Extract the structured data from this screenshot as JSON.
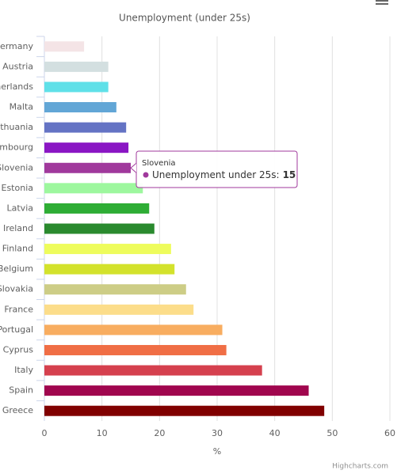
{
  "chart_data": {
    "type": "bar",
    "subtitle": "Unemployment (under 25s)",
    "categories": [
      "ermany",
      "Austria",
      "herlands",
      "Malta",
      "thuania",
      "mbourg",
      "Slovenia",
      "Estonia",
      "Latvia",
      "Ireland",
      "Finland",
      "Belgium",
      "Slovakia",
      "France",
      "Portugal",
      "Cyprus",
      "Italy",
      "Spain",
      "Greece"
    ],
    "series": [
      {
        "name": "Unemployment under 25s",
        "values": [
          6.9,
          11.1,
          11.1,
          12.5,
          14.2,
          14.6,
          15,
          17.1,
          18.2,
          19.1,
          22,
          22.6,
          24.6,
          25.9,
          30.9,
          31.6,
          37.8,
          45.9,
          48.6
        ],
        "colors": [
          "#f4e4e6",
          "#d3dfe0",
          "#5fe0e8",
          "#62a6d6",
          "#6473c4",
          "#8a16c4",
          "#a0399c",
          "#9df79e",
          "#2ead35",
          "#2a8a2e",
          "#eefc5c",
          "#d3e22c",
          "#cdcd86",
          "#fcdd8a",
          "#f8ad60",
          "#f06e45",
          "#d5404e",
          "#a0064e",
          "#800000"
        ]
      }
    ],
    "xlabel": "%",
    "xlim": [
      0,
      60
    ],
    "xticks": [
      0,
      10,
      20,
      30,
      40,
      50,
      60
    ],
    "grid": true,
    "tooltip": {
      "index": 6,
      "label": "Unemployment under 25s:"
    },
    "credits": "Highcharts.com"
  }
}
